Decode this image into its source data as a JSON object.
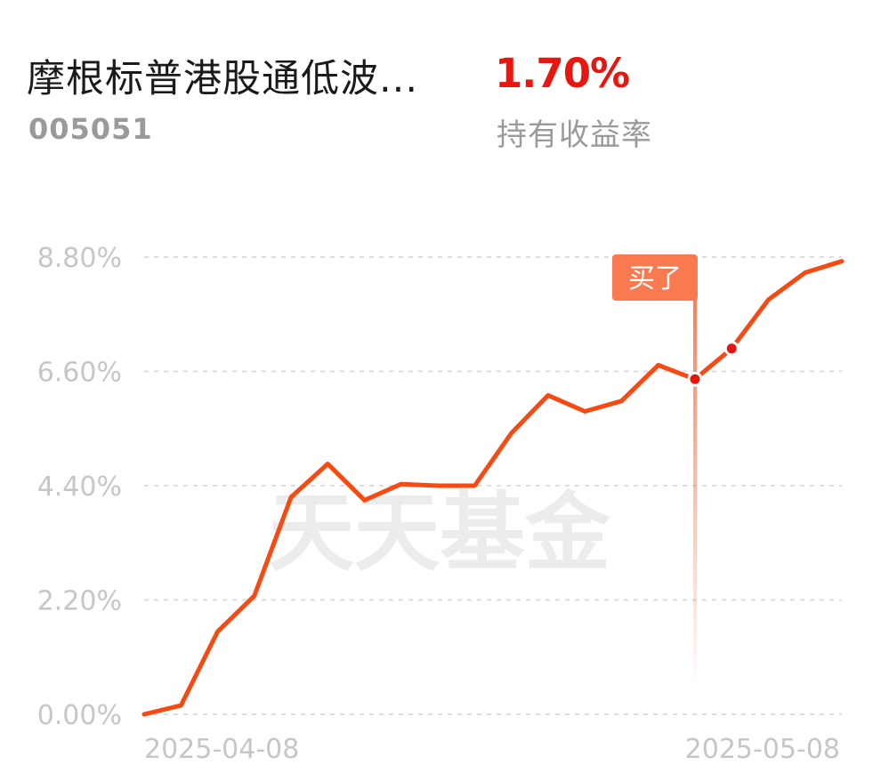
{
  "header": {
    "fund_name": "摩根标普港股通低波...",
    "fund_code": "005051",
    "return_value": "1.70%",
    "return_label": "持有收益率"
  },
  "watermark": "天天基金",
  "colors": {
    "line": "#f64a12",
    "buy_marker": "#f97a50",
    "return_value": "#e8160f",
    "grid": "#dcdcdc",
    "axis_text": "#c6c6c6",
    "watermark": "#ececec"
  },
  "chart_data": {
    "type": "line",
    "title": "",
    "xlabel": "",
    "ylabel": "",
    "ylim": [
      0,
      8.8
    ],
    "yticks": [
      0,
      2.2,
      4.4,
      6.6,
      8.8
    ],
    "ytick_labels": [
      "0.00%",
      "2.20%",
      "4.40%",
      "6.60%",
      "8.80%"
    ],
    "x_labels": [
      "2025-04-08",
      "2025-05-08"
    ],
    "grid": true,
    "series": [
      {
        "values": [
          0.0,
          0.17,
          1.59,
          2.28,
          4.18,
          4.82,
          4.12,
          4.43,
          4.4,
          4.4,
          5.41,
          6.14,
          5.83,
          6.03,
          6.72,
          6.45,
          7.04,
          7.98,
          8.5,
          8.72
        ]
      }
    ],
    "buy_marker": {
      "label": "买了",
      "index": 15
    },
    "highlight_points": [
      15,
      16
    ]
  }
}
